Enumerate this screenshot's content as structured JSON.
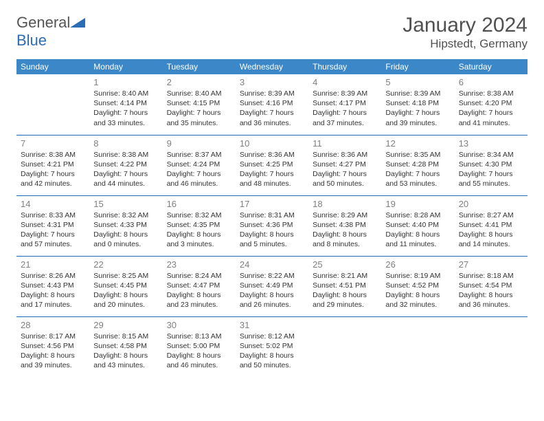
{
  "logo": {
    "word1": "General",
    "word2": "Blue"
  },
  "title": "January 2024",
  "location": "Hipstedt, Germany",
  "header_bg": "#3c87c7",
  "accent": "#2a6db5",
  "daynum_color": "#808080",
  "text_color": "#333333",
  "days": [
    "Sunday",
    "Monday",
    "Tuesday",
    "Wednesday",
    "Thursday",
    "Friday",
    "Saturday"
  ],
  "first_weekday_index": 1,
  "cells": [
    {
      "n": 1,
      "sr": "8:40 AM",
      "ss": "4:14 PM",
      "dl": "7 hours and 33 minutes."
    },
    {
      "n": 2,
      "sr": "8:40 AM",
      "ss": "4:15 PM",
      "dl": "7 hours and 35 minutes."
    },
    {
      "n": 3,
      "sr": "8:39 AM",
      "ss": "4:16 PM",
      "dl": "7 hours and 36 minutes."
    },
    {
      "n": 4,
      "sr": "8:39 AM",
      "ss": "4:17 PM",
      "dl": "7 hours and 37 minutes."
    },
    {
      "n": 5,
      "sr": "8:39 AM",
      "ss": "4:18 PM",
      "dl": "7 hours and 39 minutes."
    },
    {
      "n": 6,
      "sr": "8:38 AM",
      "ss": "4:20 PM",
      "dl": "7 hours and 41 minutes."
    },
    {
      "n": 7,
      "sr": "8:38 AM",
      "ss": "4:21 PM",
      "dl": "7 hours and 42 minutes."
    },
    {
      "n": 8,
      "sr": "8:38 AM",
      "ss": "4:22 PM",
      "dl": "7 hours and 44 minutes."
    },
    {
      "n": 9,
      "sr": "8:37 AM",
      "ss": "4:24 PM",
      "dl": "7 hours and 46 minutes."
    },
    {
      "n": 10,
      "sr": "8:36 AM",
      "ss": "4:25 PM",
      "dl": "7 hours and 48 minutes."
    },
    {
      "n": 11,
      "sr": "8:36 AM",
      "ss": "4:27 PM",
      "dl": "7 hours and 50 minutes."
    },
    {
      "n": 12,
      "sr": "8:35 AM",
      "ss": "4:28 PM",
      "dl": "7 hours and 53 minutes."
    },
    {
      "n": 13,
      "sr": "8:34 AM",
      "ss": "4:30 PM",
      "dl": "7 hours and 55 minutes."
    },
    {
      "n": 14,
      "sr": "8:33 AM",
      "ss": "4:31 PM",
      "dl": "7 hours and 57 minutes."
    },
    {
      "n": 15,
      "sr": "8:32 AM",
      "ss": "4:33 PM",
      "dl": "8 hours and 0 minutes."
    },
    {
      "n": 16,
      "sr": "8:32 AM",
      "ss": "4:35 PM",
      "dl": "8 hours and 3 minutes."
    },
    {
      "n": 17,
      "sr": "8:31 AM",
      "ss": "4:36 PM",
      "dl": "8 hours and 5 minutes."
    },
    {
      "n": 18,
      "sr": "8:29 AM",
      "ss": "4:38 PM",
      "dl": "8 hours and 8 minutes."
    },
    {
      "n": 19,
      "sr": "8:28 AM",
      "ss": "4:40 PM",
      "dl": "8 hours and 11 minutes."
    },
    {
      "n": 20,
      "sr": "8:27 AM",
      "ss": "4:41 PM",
      "dl": "8 hours and 14 minutes."
    },
    {
      "n": 21,
      "sr": "8:26 AM",
      "ss": "4:43 PM",
      "dl": "8 hours and 17 minutes."
    },
    {
      "n": 22,
      "sr": "8:25 AM",
      "ss": "4:45 PM",
      "dl": "8 hours and 20 minutes."
    },
    {
      "n": 23,
      "sr": "8:24 AM",
      "ss": "4:47 PM",
      "dl": "8 hours and 23 minutes."
    },
    {
      "n": 24,
      "sr": "8:22 AM",
      "ss": "4:49 PM",
      "dl": "8 hours and 26 minutes."
    },
    {
      "n": 25,
      "sr": "8:21 AM",
      "ss": "4:51 PM",
      "dl": "8 hours and 29 minutes."
    },
    {
      "n": 26,
      "sr": "8:19 AM",
      "ss": "4:52 PM",
      "dl": "8 hours and 32 minutes."
    },
    {
      "n": 27,
      "sr": "8:18 AM",
      "ss": "4:54 PM",
      "dl": "8 hours and 36 minutes."
    },
    {
      "n": 28,
      "sr": "8:17 AM",
      "ss": "4:56 PM",
      "dl": "8 hours and 39 minutes."
    },
    {
      "n": 29,
      "sr": "8:15 AM",
      "ss": "4:58 PM",
      "dl": "8 hours and 43 minutes."
    },
    {
      "n": 30,
      "sr": "8:13 AM",
      "ss": "5:00 PM",
      "dl": "8 hours and 46 minutes."
    },
    {
      "n": 31,
      "sr": "8:12 AM",
      "ss": "5:02 PM",
      "dl": "8 hours and 50 minutes."
    }
  ],
  "labels": {
    "sunrise": "Sunrise:",
    "sunset": "Sunset:",
    "daylight": "Daylight:"
  }
}
